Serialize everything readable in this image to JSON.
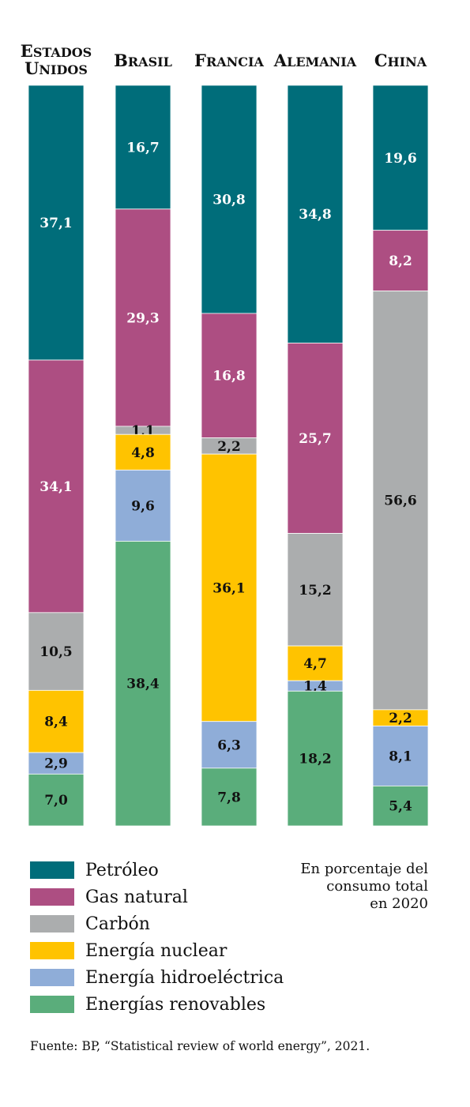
{
  "chart_data": {
    "type": "bar",
    "stacked": true,
    "categories": [
      "ESTADOS UNIDOS",
      "BRASIL",
      "FRANCIA",
      "ALEMANIA",
      "CHINA"
    ],
    "category_lines": [
      [
        "ESTADOS",
        "UNIDOS"
      ],
      [
        "BRASIL"
      ],
      [
        "FRANCIA"
      ],
      [
        "ALEMANIA"
      ],
      [
        "CHINA"
      ]
    ],
    "series": [
      {
        "name": "Petróleo",
        "color": "#006d7a",
        "label_color": "#ffffff",
        "values": [
          37.1,
          16.7,
          30.8,
          34.8,
          19.6
        ],
        "labels": [
          "37,1",
          "16,7",
          "30,8",
          "34,8",
          "19,6"
        ]
      },
      {
        "name": "Gas natural",
        "color": "#ad4e82",
        "label_color": "#ffffff",
        "values": [
          34.1,
          29.3,
          16.8,
          25.7,
          8.2
        ],
        "labels": [
          "34,1",
          "29,3",
          "16,8",
          "25,7",
          "8,2"
        ]
      },
      {
        "name": "Carbón",
        "color": "#abadae",
        "label_color": "#111111",
        "values": [
          10.5,
          1.1,
          2.2,
          15.2,
          56.6
        ],
        "labels": [
          "10,5",
          "1,1",
          "2,2",
          "15,2",
          "56,6"
        ]
      },
      {
        "name": "Energía nuclear",
        "color": "#ffc300",
        "label_color": "#111111",
        "values": [
          8.4,
          4.8,
          36.1,
          4.7,
          2.2
        ],
        "labels": [
          "8,4",
          "4,8",
          "36,1",
          "4,7",
          "2,2"
        ]
      },
      {
        "name": "Energía hidroeléctrica",
        "color": "#8fadd8",
        "label_color": "#111111",
        "values": [
          2.9,
          9.6,
          6.3,
          1.4,
          8.1
        ],
        "labels": [
          "2,9",
          "9,6",
          "6,3",
          "1,4",
          "8,1"
        ]
      },
      {
        "name": "Energías renovables",
        "color": "#5aad7b",
        "label_color": "#111111",
        "values": [
          7.0,
          38.4,
          7.8,
          18.2,
          5.4
        ],
        "labels": [
          "7,0",
          "38,4",
          "7,8",
          "18,2",
          "5,4"
        ]
      }
    ],
    "ylim": [
      0,
      100
    ],
    "legend_position": "bottom-left",
    "grid": false
  },
  "note": {
    "lines": [
      "En porcentaje del",
      "consumo total",
      "en 2020"
    ]
  },
  "source": "Fuente: BP, “Statistical review of world energy”, 2021."
}
